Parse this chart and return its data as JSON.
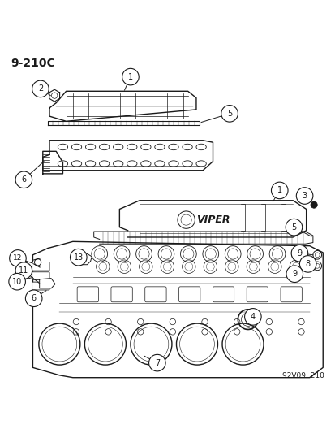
{
  "title_code": "9-210C",
  "watermark": "92V09  210",
  "background_color": "#ffffff",
  "line_color": "#1a1a1a",
  "fig_width": 4.14,
  "fig_height": 5.33,
  "dpi": 100
}
